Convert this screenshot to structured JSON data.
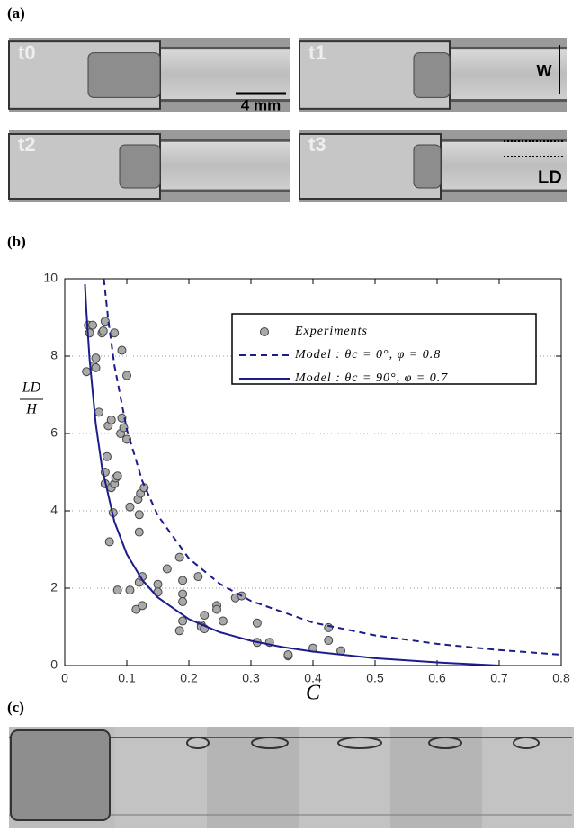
{
  "panels": [
    "(a)",
    "(b)",
    "(c)"
  ],
  "image_labels": {
    "times": [
      "t0",
      "t1",
      "t2",
      "t3"
    ],
    "scale": "4 mm",
    "width": "W",
    "length": "LD"
  },
  "chart_data": {
    "type": "scatter",
    "x_label": "C",
    "y_label": {
      "numerator": "LD",
      "denominator": "H"
    },
    "xlim": [
      0,
      0.8
    ],
    "ylim": [
      0,
      10
    ],
    "xticks": [
      0,
      0.1,
      0.2,
      0.3,
      0.4,
      0.5,
      0.6,
      0.7,
      0.8
    ],
    "yticks": [
      0,
      2,
      4,
      6,
      8,
      10
    ],
    "grid": true,
    "series": [
      {
        "name": "Experiments",
        "mode": "markers",
        "color": "#a9a9a9",
        "x": [
          0.035,
          0.038,
          0.04,
          0.045,
          0.047,
          0.05,
          0.05,
          0.055,
          0.06,
          0.062,
          0.065,
          0.065,
          0.065,
          0.068,
          0.07,
          0.072,
          0.075,
          0.075,
          0.08,
          0.078,
          0.08,
          0.082,
          0.085,
          0.085,
          0.09,
          0.092,
          0.092,
          0.095,
          0.1,
          0.1,
          0.105,
          0.105,
          0.115,
          0.118,
          0.12,
          0.12,
          0.12,
          0.122,
          0.125,
          0.125,
          0.128,
          0.15,
          0.15,
          0.165,
          0.185,
          0.185,
          0.19,
          0.19,
          0.19,
          0.19,
          0.215,
          0.22,
          0.22,
          0.225,
          0.225,
          0.245,
          0.245,
          0.255,
          0.275,
          0.285,
          0.31,
          0.31,
          0.33,
          0.36,
          0.36,
          0.4,
          0.425,
          0.425,
          0.445
        ],
        "values": [
          7.6,
          8.8,
          8.6,
          8.8,
          7.75,
          7.95,
          7.7,
          6.55,
          8.6,
          8.65,
          8.9,
          5.0,
          4.7,
          5.4,
          6.2,
          3.2,
          6.35,
          4.6,
          8.6,
          3.95,
          4.7,
          4.85,
          1.95,
          4.9,
          6.0,
          8.15,
          6.4,
          6.15,
          5.85,
          7.5,
          4.1,
          1.95,
          1.45,
          4.3,
          3.9,
          3.45,
          2.15,
          4.45,
          1.55,
          2.3,
          4.6,
          2.1,
          1.9,
          2.5,
          2.8,
          0.9,
          1.15,
          1.85,
          1.65,
          2.2,
          2.3,
          1.05,
          1.0,
          1.3,
          0.95,
          1.55,
          1.45,
          1.15,
          1.75,
          1.8,
          1.1,
          0.6,
          0.6,
          0.25,
          0.28,
          0.45,
          0.65,
          0.98,
          0.38
        ]
      },
      {
        "name": "Model : θc = 0°, φ = 0.8",
        "mode": "dashed",
        "color": "#1c1c8a",
        "x": [
          0.063,
          0.07,
          0.08,
          0.1,
          0.125,
          0.15,
          0.2,
          0.25,
          0.3,
          0.4,
          0.5,
          0.6,
          0.7,
          0.8
        ],
        "values": [
          10.0,
          8.95,
          7.76,
          6.1,
          4.77,
          3.88,
          2.77,
          2.11,
          1.67,
          1.11,
          0.78,
          0.56,
          0.4,
          0.28
        ]
      },
      {
        "name": "Model : θc = 90°, φ = 0.7",
        "mode": "solid",
        "color": "#1c1c8a",
        "x": [
          0.0325,
          0.035,
          0.04,
          0.05,
          0.06,
          0.08,
          0.1,
          0.125,
          0.15,
          0.2,
          0.25,
          0.3,
          0.35,
          0.4,
          0.5,
          0.6,
          0.7
        ],
        "values": [
          9.86,
          9.12,
          7.92,
          6.24,
          5.12,
          3.72,
          2.88,
          2.21,
          1.76,
          1.2,
          0.86,
          0.64,
          0.48,
          0.36,
          0.19,
          0.08,
          0
        ]
      }
    ]
  }
}
